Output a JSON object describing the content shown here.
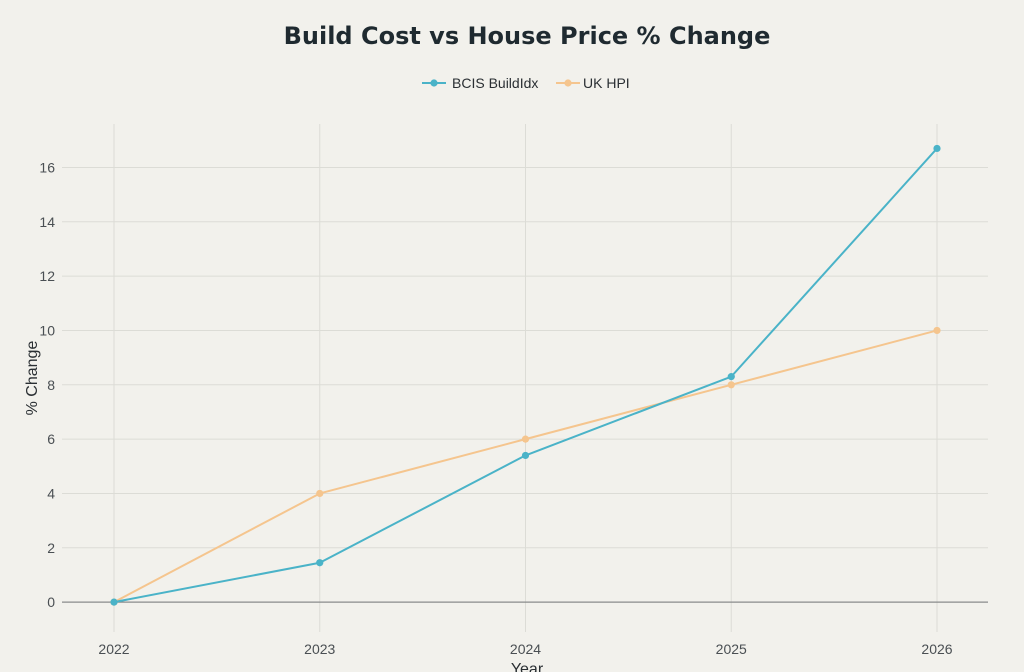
{
  "chart_data": {
    "type": "line",
    "title": "Build Cost vs House Price % Change",
    "xlabel": "Year",
    "ylabel": "% Change",
    "categories": [
      "2022",
      "2023",
      "2024",
      "2025",
      "2026"
    ],
    "ylim": [
      -1.1,
      17.6
    ],
    "yticks": [
      0,
      2,
      4,
      6,
      8,
      10,
      12,
      14,
      16
    ],
    "grid": true,
    "legend_position": "top-center",
    "series": [
      {
        "name": "BCIS BuildIdx",
        "color": "#4ab3c8",
        "values": [
          0,
          1.45,
          5.4,
          8.3,
          16.7
        ]
      },
      {
        "name": "UK HPI",
        "color": "#f5c58e",
        "values": [
          0,
          4.0,
          6.0,
          8.0,
          10.0
        ]
      }
    ]
  }
}
